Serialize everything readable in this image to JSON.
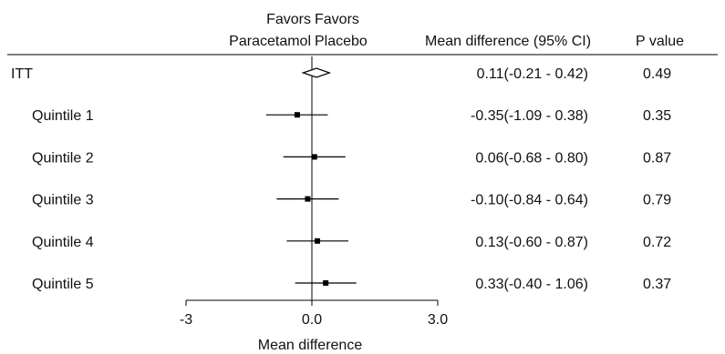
{
  "chart_data": {
    "type": "forest",
    "header": {
      "favors_left": [
        "Favors",
        "Paracetamol"
      ],
      "favors_right": [
        "Favors",
        "Placebo"
      ],
      "effect_col": "Mean difference (95% CI)",
      "p_col": "P value"
    },
    "rows": [
      {
        "label": "ITT",
        "estimate": 0.11,
        "lower": -0.21,
        "upper": 0.42,
        "ci_text": "0.11(-0.21 - 0.42)",
        "p": "0.49",
        "marker": "diamond",
        "indent": false
      },
      {
        "label": "Quintile 1",
        "estimate": -0.35,
        "lower": -1.09,
        "upper": 0.38,
        "ci_text": "-0.35(-1.09 - 0.38)",
        "p": "0.35",
        "marker": "square",
        "indent": true
      },
      {
        "label": "Quintile 2",
        "estimate": 0.06,
        "lower": -0.68,
        "upper": 0.8,
        "ci_text": "0.06(-0.68 - 0.80)",
        "p": "0.87",
        "marker": "square",
        "indent": true
      },
      {
        "label": "Quintile 3",
        "estimate": -0.1,
        "lower": -0.84,
        "upper": 0.64,
        "ci_text": "-0.10(-0.84 - 0.64)",
        "p": "0.79",
        "marker": "square",
        "indent": true
      },
      {
        "label": "Quintile 4",
        "estimate": 0.13,
        "lower": -0.6,
        "upper": 0.87,
        "ci_text": "0.13(-0.60 - 0.87)",
        "p": "0.72",
        "marker": "square",
        "indent": true
      },
      {
        "label": "Quintile 5",
        "estimate": 0.33,
        "lower": -0.4,
        "upper": 1.06,
        "ci_text": "0.33(-0.40 - 1.06)",
        "p": "0.37",
        "marker": "square",
        "indent": true
      }
    ],
    "xaxis": {
      "label": "Mean difference",
      "ticks": [
        -3,
        0,
        3
      ],
      "tick_labels": [
        "-3",
        "0.0",
        "3.0"
      ],
      "range": [
        -3,
        3
      ]
    },
    "reference_line": 0,
    "color": "#000000"
  }
}
